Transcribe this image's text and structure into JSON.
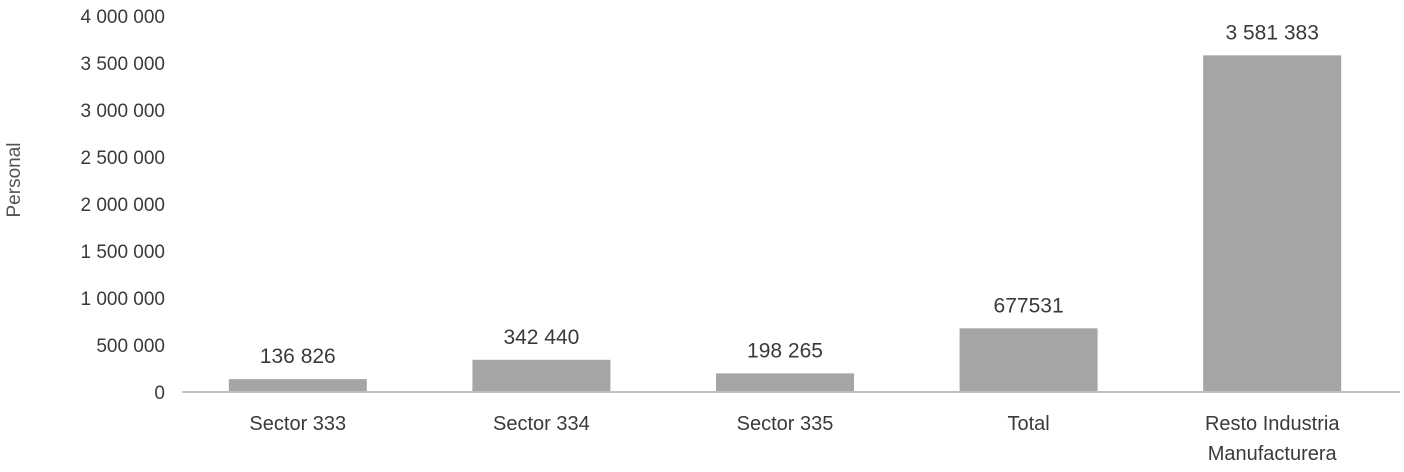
{
  "chart_data": {
    "type": "bar",
    "ylabel": "Personal",
    "xlabel": "",
    "title": "",
    "categories": [
      "Sector 333",
      "Sector 334",
      "Sector 335",
      "Total",
      "Resto Industria Manufacturera"
    ],
    "values": [
      136826,
      342440,
      198265,
      677531,
      3581383
    ],
    "data_labels": [
      "136 826",
      "342 440",
      "198 265",
      "677531",
      "3 581 383"
    ],
    "ylim": [
      0,
      4000000
    ],
    "yticks": [
      0,
      500000,
      1000000,
      1500000,
      2000000,
      2500000,
      3000000,
      3500000,
      4000000
    ],
    "ytick_labels": [
      "0",
      "500 000",
      "1 000 000",
      "1 500 000",
      "2 000 000",
      "2 500 000",
      "3 000 000",
      "3 500 000",
      "4 000 000"
    ],
    "grid": false,
    "legend": "none",
    "bar_color": "#a5a5a5"
  }
}
